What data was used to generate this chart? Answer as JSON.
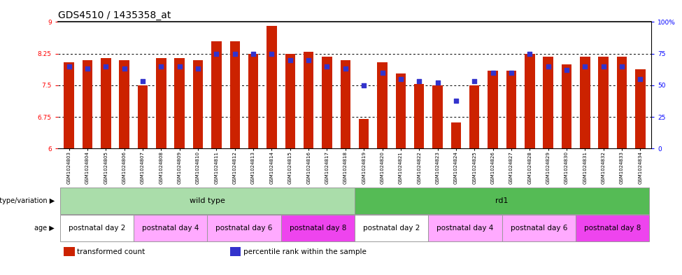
{
  "title": "GDS4510 / 1435358_at",
  "samples": [
    "GSM1024803",
    "GSM1024804",
    "GSM1024805",
    "GSM1024806",
    "GSM1024807",
    "GSM1024808",
    "GSM1024809",
    "GSM1024810",
    "GSM1024811",
    "GSM1024812",
    "GSM1024813",
    "GSM1024814",
    "GSM1024815",
    "GSM1024816",
    "GSM1024817",
    "GSM1024818",
    "GSM1024819",
    "GSM1024820",
    "GSM1024821",
    "GSM1024822",
    "GSM1024823",
    "GSM1024824",
    "GSM1024825",
    "GSM1024826",
    "GSM1024827",
    "GSM1024828",
    "GSM1024829",
    "GSM1024830",
    "GSM1024831",
    "GSM1024832",
    "GSM1024833",
    "GSM1024834"
  ],
  "bar_values": [
    8.05,
    8.1,
    8.15,
    8.1,
    7.5,
    8.15,
    8.15,
    8.1,
    8.55,
    8.55,
    8.25,
    8.9,
    8.25,
    8.3,
    8.18,
    8.1,
    6.7,
    8.05,
    7.78,
    7.53,
    7.5,
    6.62,
    7.5,
    7.85,
    7.85,
    8.25,
    8.18,
    8.0,
    8.18,
    8.18,
    8.18,
    7.88
  ],
  "percentile_values": [
    65,
    63,
    65,
    63,
    53,
    65,
    65,
    63,
    75,
    75,
    75,
    75,
    70,
    70,
    65,
    63,
    50,
    60,
    55,
    53,
    52,
    38,
    53,
    60,
    60,
    75,
    65,
    62,
    65,
    65,
    65,
    55
  ],
  "ylim_left": [
    6,
    9
  ],
  "ylim_right": [
    0,
    100
  ],
  "yticks_left": [
    6,
    6.75,
    7.5,
    8.25,
    9
  ],
  "yticks_right": [
    0,
    25,
    50,
    75,
    100
  ],
  "ytick_labels_right": [
    "0",
    "25",
    "50",
    "75",
    "100%"
  ],
  "bar_color": "#cc2200",
  "dot_color": "#3333cc",
  "bar_width": 0.55,
  "genotype_groups": [
    {
      "label": "wild type",
      "color": "#aaddaa",
      "start": 0,
      "end": 16
    },
    {
      "label": "rd1",
      "color": "#55bb55",
      "start": 16,
      "end": 32
    }
  ],
  "age_colors": [
    "#ffffff",
    "#ffaaff",
    "#ffaaff",
    "#ee44ee"
  ],
  "age_labels": [
    "postnatal day 2",
    "postnatal day 4",
    "postnatal day 6",
    "postnatal day 8"
  ],
  "age_groups": [
    {
      "label": "postnatal day 2",
      "cidx": 0,
      "start": 0,
      "end": 4
    },
    {
      "label": "postnatal day 4",
      "cidx": 1,
      "start": 4,
      "end": 8
    },
    {
      "label": "postnatal day 6",
      "cidx": 2,
      "start": 8,
      "end": 12
    },
    {
      "label": "postnatal day 8",
      "cidx": 3,
      "start": 12,
      "end": 16
    },
    {
      "label": "postnatal day 2",
      "cidx": 0,
      "start": 16,
      "end": 20
    },
    {
      "label": "postnatal day 4",
      "cidx": 1,
      "start": 20,
      "end": 24
    },
    {
      "label": "postnatal day 6",
      "cidx": 2,
      "start": 24,
      "end": 28
    },
    {
      "label": "postnatal day 8",
      "cidx": 3,
      "start": 28,
      "end": 32
    }
  ],
  "background_color": "#ffffff",
  "title_fontsize": 10,
  "tick_fontsize": 6.5,
  "annot_fontsize": 8,
  "legend_fontsize": 7.5
}
